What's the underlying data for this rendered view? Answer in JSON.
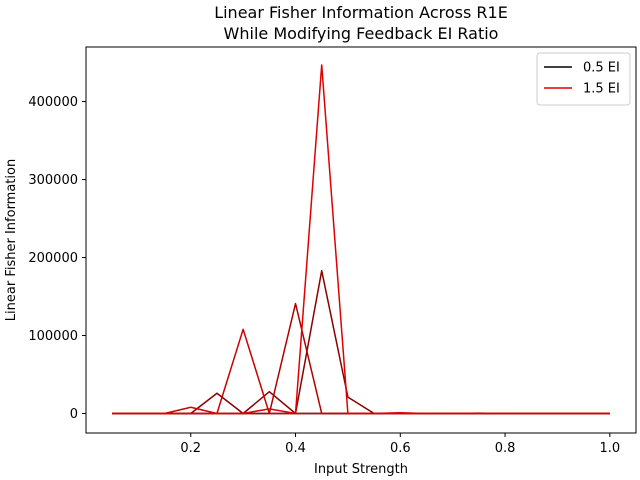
{
  "chart_data": {
    "type": "line",
    "title_line1": "Linear Fisher Information Across R1E",
    "title_line2": "While Modifying Feedback EI Ratio",
    "xlabel": "Input Strength",
    "ylabel": "Linear Fisher Information",
    "xlim": [
      0.0,
      1.05
    ],
    "ylim": [
      -25000,
      470000
    ],
    "xticks": [
      0.2,
      0.4,
      0.6,
      0.8,
      1.0
    ],
    "xtick_labels": [
      "0.2",
      "0.4",
      "0.6",
      "0.8",
      "1.0"
    ],
    "yticks": [
      0,
      100000,
      200000,
      300000,
      400000
    ],
    "ytick_labels": [
      "0",
      "100000",
      "200000",
      "300000",
      "400000"
    ],
    "grid": false,
    "legend_position": "top-right",
    "x": [
      0.05,
      0.1,
      0.15,
      0.2,
      0.25,
      0.3,
      0.35,
      0.4,
      0.45,
      0.5,
      0.55,
      0.6,
      0.65,
      0.7,
      0.75,
      0.8,
      0.85,
      0.9,
      0.95,
      1.0
    ],
    "series": [
      {
        "name": "0.5 EI",
        "color": "#000000",
        "legend": true,
        "values": [
          0,
          0,
          0,
          0,
          0,
          0,
          0,
          0,
          0,
          0,
          0,
          0,
          0,
          0,
          0,
          0,
          0,
          0,
          0,
          0
        ]
      },
      {
        "color": "#8b0000",
        "legend": false,
        "values": [
          0,
          0,
          0,
          0,
          26000,
          0,
          28000,
          0,
          183000,
          21000,
          0,
          500,
          0,
          0,
          0,
          0,
          0,
          0,
          0,
          0
        ]
      },
      {
        "color": "#b00000",
        "legend": false,
        "values": [
          0,
          0,
          0,
          0,
          0,
          0,
          0,
          141000,
          0,
          0,
          0,
          0,
          0,
          0,
          0,
          0,
          0,
          0,
          0,
          0
        ]
      },
      {
        "color": "#cc0000",
        "legend": false,
        "values": [
          0,
          0,
          0,
          8000,
          0,
          108000,
          0,
          0,
          0,
          0,
          0,
          0,
          0,
          0,
          0,
          0,
          0,
          0,
          0,
          0
        ]
      },
      {
        "name": "1.5 EI",
        "color": "#e00000",
        "legend": true,
        "values": [
          0,
          0,
          0,
          0,
          0,
          0,
          6000,
          0,
          447000,
          0,
          0,
          1000,
          0,
          0,
          500,
          0,
          0,
          0,
          0,
          0
        ]
      }
    ]
  }
}
